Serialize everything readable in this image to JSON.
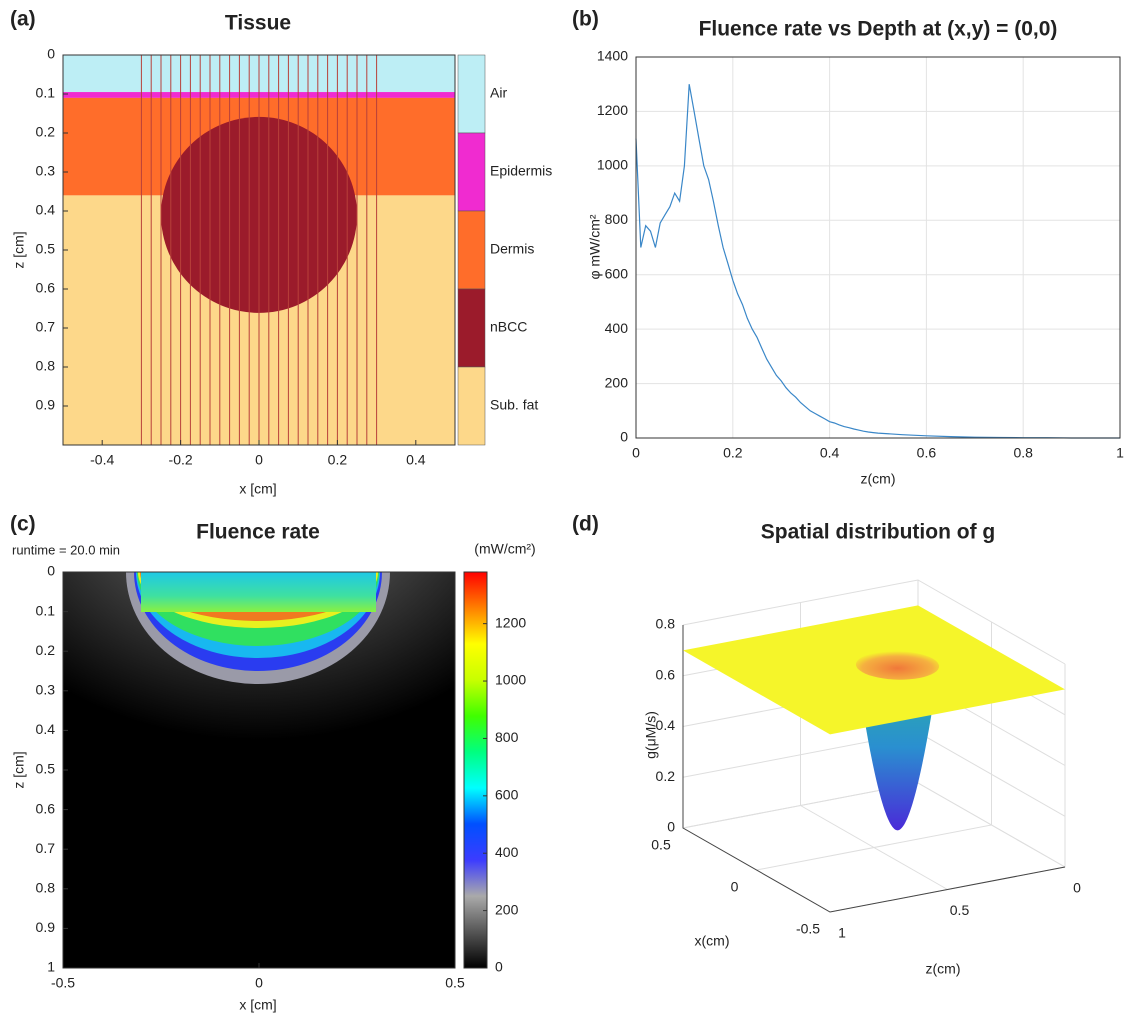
{
  "chart_data": [
    {
      "type": "tissue",
      "panel": "(a)",
      "title": "Tissue",
      "x_label": "x [cm]",
      "y_label": "z [cm]",
      "xlim": [
        -0.5,
        0.5
      ],
      "ylim": [
        0,
        1
      ],
      "xticks": [
        -0.4,
        -0.2,
        0,
        0.2,
        0.4
      ],
      "yticks": [
        0,
        0.1,
        0.2,
        0.3,
        0.4,
        0.5,
        0.6,
        0.7,
        0.8,
        0.9
      ],
      "tissues": [
        {
          "name": "Air",
          "color": "#bdeef5",
          "z": [
            0,
            0.095
          ]
        },
        {
          "name": "Epidermis",
          "color": "#f02bd0",
          "z": [
            0.095,
            0.11
          ]
        },
        {
          "name": "Dermis",
          "color": "#ff6d2a",
          "z": [
            0.11,
            0.36
          ]
        },
        {
          "name": "nBCC",
          "color": "#9b1b2b",
          "center": [
            0,
            0.41
          ],
          "radius": 0.25
        },
        {
          "name": "Sub. fat",
          "color": "#fdd88a",
          "z": [
            0.36,
            1
          ]
        }
      ],
      "beam_lines": {
        "color": "#b8403a",
        "x": [
          -0.3,
          -0.275,
          -0.25,
          -0.225,
          -0.2,
          -0.175,
          -0.15,
          -0.125,
          -0.1,
          -0.075,
          -0.05,
          -0.025,
          0,
          0.025,
          0.05,
          0.075,
          0.1,
          0.125,
          0.15,
          0.175,
          0.2,
          0.225,
          0.25,
          0.275,
          0.3
        ]
      }
    },
    {
      "type": "line",
      "panel": "(b)",
      "title": "Fluence rate vs Depth at (x,y) = (0,0)",
      "x_label": "z(cm)",
      "y_label": "φ mW/cm²",
      "x": [
        0,
        0.01,
        0.02,
        0.03,
        0.04,
        0.05,
        0.06,
        0.07,
        0.08,
        0.09,
        0.1,
        0.11,
        0.12,
        0.13,
        0.14,
        0.15,
        0.16,
        0.17,
        0.18,
        0.19,
        0.2,
        0.21,
        0.22,
        0.23,
        0.24,
        0.25,
        0.26,
        0.27,
        0.28,
        0.29,
        0.3,
        0.31,
        0.32,
        0.33,
        0.34,
        0.35,
        0.36,
        0.37,
        0.38,
        0.39,
        0.4,
        0.41,
        0.42,
        0.43,
        0.44,
        0.45,
        0.46,
        0.47,
        0.48,
        0.49,
        0.5,
        0.55,
        0.6,
        0.65,
        0.7,
        0.75,
        0.8,
        0.85,
        0.9,
        0.95,
        1
      ],
      "values": [
        1100,
        700,
        780,
        760,
        700,
        790,
        820,
        850,
        900,
        870,
        1000,
        1300,
        1200,
        1100,
        1000,
        950,
        870,
        780,
        700,
        640,
        580,
        530,
        490,
        440,
        400,
        370,
        330,
        290,
        260,
        230,
        210,
        185,
        165,
        150,
        130,
        115,
        100,
        90,
        80,
        70,
        60,
        55,
        48,
        42,
        38,
        33,
        29,
        25,
        22,
        20,
        18,
        12,
        8,
        5,
        3,
        2,
        1,
        1,
        0,
        0,
        0
      ],
      "color": "#3a87c8",
      "xlim": [
        0,
        1
      ],
      "ylim": [
        0,
        1400
      ],
      "xticks": [
        0,
        0.2,
        0.4,
        0.6,
        0.8,
        1
      ],
      "yticks": [
        0,
        200,
        400,
        600,
        800,
        1000,
        1200,
        1400
      ],
      "grid": true
    },
    {
      "type": "heatmap",
      "panel": "(c)",
      "title": "Fluence rate",
      "annotation": "runtime = 20.0 min",
      "x_label": "x [cm]",
      "y_label": "z [cm]",
      "xlim": [
        -0.5,
        0.5
      ],
      "ylim": [
        0,
        1
      ],
      "xticks": [
        -0.5,
        0,
        0.5
      ],
      "yticks": [
        0,
        0.1,
        0.2,
        0.3,
        0.4,
        0.5,
        0.6,
        0.7,
        0.8,
        0.9,
        1
      ],
      "colorbar": {
        "label": "(mW/cm²)",
        "lim": [
          0,
          1380
        ],
        "ticks": [
          0,
          200,
          400,
          600,
          800,
          1000,
          1200
        ],
        "colormap": [
          "#000000",
          "#555555",
          "#aaaaaa",
          "#3c3cff",
          "#0050ff",
          "#00ffff",
          "#00ff80",
          "#40ff00",
          "#c8ff00",
          "#ffff00",
          "#ff8000",
          "#ff0000"
        ]
      }
    },
    {
      "type": "surface",
      "panel": "(d)",
      "title": "Spatial distribution of g",
      "x_label": "x(cm)",
      "y_label": "z(cm)",
      "z_label": "g(μM/s)",
      "xlim": [
        -0.5,
        0.5
      ],
      "ylim": [
        0,
        1
      ],
      "zlim": [
        0,
        0.8
      ],
      "xticks": [
        -0.5,
        0,
        0.5
      ],
      "yticks": [
        0,
        0.5,
        1
      ],
      "zticks": [
        0,
        0.2,
        0.4,
        0.6,
        0.8
      ],
      "plateau": 0.7,
      "color": "#f5f52a",
      "well": {
        "center": [
          0,
          0.4
        ],
        "radius": 0.15,
        "minimum": 0.05
      }
    }
  ]
}
